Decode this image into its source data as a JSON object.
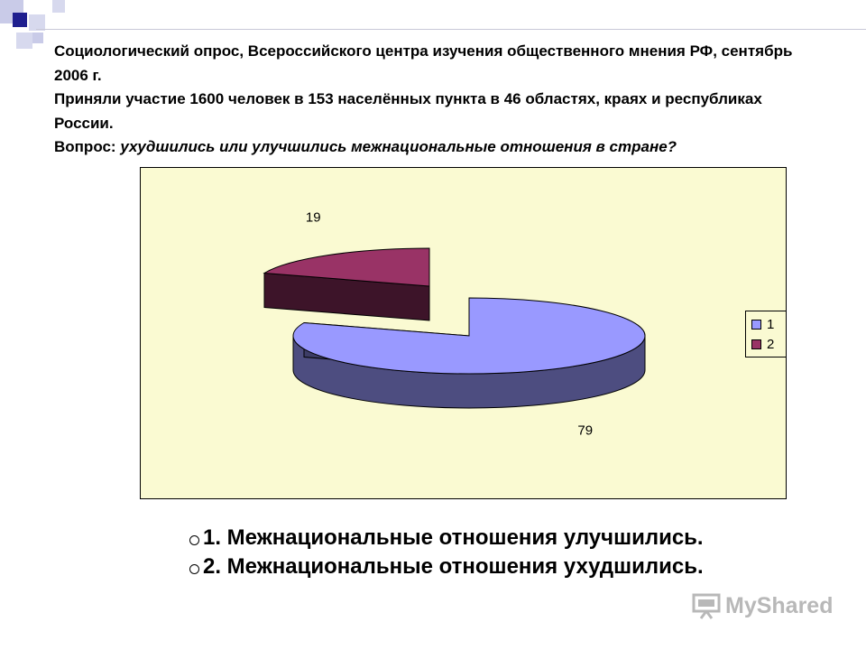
{
  "heading": {
    "line1": "Социологический опрос, Всероссийского центра изучения общественного мнения  РФ, сентябрь 2006 г.",
    "line2": "Приняли участие 1600 человек в 153 населённых пункта в 46 областях, краях и республиках России.",
    "question_label": "Вопрос: ",
    "question_text": "ухудшились или улучшились межнациональные отношения в стране?"
  },
  "chart_data": {
    "type": "pie",
    "categories": [
      "1",
      "2"
    ],
    "values": [
      79,
      19
    ],
    "data_labels": [
      "79",
      "19"
    ],
    "colors": [
      "#9999ff",
      "#993366"
    ],
    "legend_position": "right",
    "background": "#fafad2",
    "three_d": true
  },
  "legend": {
    "items": [
      {
        "label": "1",
        "color": "#9999ff"
      },
      {
        "label": "2",
        "color": "#993366"
      }
    ]
  },
  "items": [
    "1. Межнациональные отношения улучшились.",
    "2. Межнациональные отношения ухудшились."
  ],
  "watermark": {
    "text": "MyShared"
  },
  "deco_colors": {
    "navy": "#1f1f8f",
    "pale": "#c9cbe8"
  }
}
